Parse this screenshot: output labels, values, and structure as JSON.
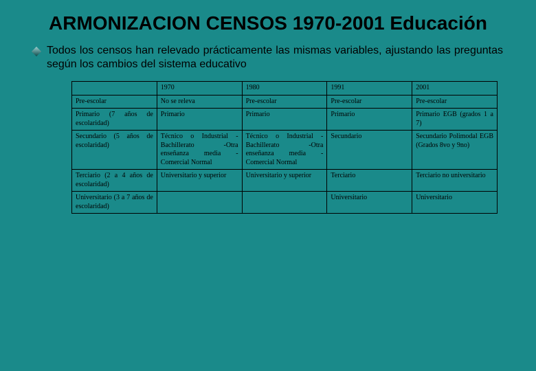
{
  "background_color": "#1a8a8a",
  "title_text": "ARMONIZACION CENSOS 1970-2001 Educación",
  "title_fontsize": 28,
  "title_color": "#000000",
  "bullet_text": "Todos los censos han relevado prácticamente las mismas variables, ajustando las preguntas según los cambios del sistema educativo",
  "bullet_fontsize": 16,
  "bullet_color": "#000000",
  "table": {
    "border_color": "#000000",
    "cell_fontsize": 10,
    "columns": [
      "",
      "1970",
      "1980",
      "1991",
      "2001"
    ],
    "col_widths_pct": [
      20,
      20,
      20,
      20,
      20
    ],
    "rows": [
      [
        "Pre-escolar",
        "No se releva",
        "Pre-escolar",
        "Pre-escolar",
        "Pre-escolar"
      ],
      [
        "Primario (7 años de escolaridad)",
        "Primario",
        "Primario",
        "Primario",
        "Primario\nEGB (grados 1 a 7)"
      ],
      [
        "Secundario (5 años de escolaridad)",
        "Técnico o Industrial\n-Bachillerato\n-Otra enseñanza media\n-Comercial\nNormal",
        "Técnico o Industrial\n-Bachillerato\n-Otra enseñanza media\n-Comercial\nNormal",
        "Secundario",
        "Secundario\nPolimodal\nEGB (Grados 8vo y 9no)"
      ],
      [
        "Terciario (2 a 4 años de escolaridad)",
        "Universitario y superior",
        "Universitario y superior",
        "Terciario",
        "Terciario no universitario"
      ],
      [
        "Universitario (3 a 7 años de escolaridad)",
        "",
        "",
        "Universitario",
        "Universitario"
      ]
    ]
  }
}
